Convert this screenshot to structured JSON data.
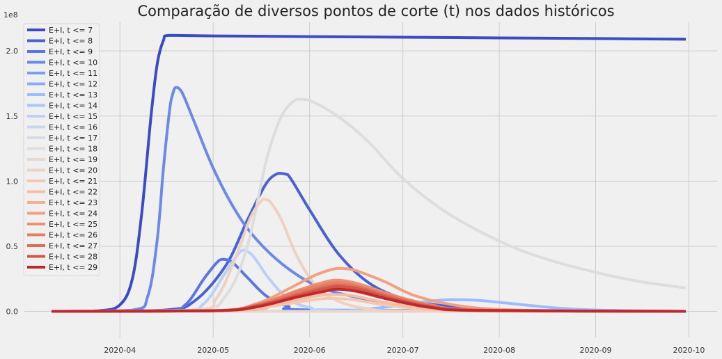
{
  "chart_data": {
    "type": "line",
    "title": "Comparação de diversos pontos de corte (t) nos dados históricos",
    "xlabel": "",
    "ylabel": "",
    "y_exponent_label": "1e8",
    "x_range": [
      "2020-03-10",
      "2020-09-30"
    ],
    "ylim": [
      -0.2,
      2.22
    ],
    "x_ticks": [
      {
        "date": "2020-04-01",
        "label": "2020-04"
      },
      {
        "date": "2020-05-01",
        "label": "2020-05"
      },
      {
        "date": "2020-06-01",
        "label": "2020-06"
      },
      {
        "date": "2020-07-01",
        "label": "2020-07"
      },
      {
        "date": "2020-08-01",
        "label": "2020-08"
      },
      {
        "date": "2020-09-01",
        "label": "2020-09"
      },
      {
        "date": "2020-10-01",
        "label": "2020-10"
      }
    ],
    "y_ticks": [
      {
        "value": 0.0,
        "label": "0.0"
      },
      {
        "value": 0.5,
        "label": "0.5"
      },
      {
        "value": 1.0,
        "label": "1.0"
      },
      {
        "value": 1.5,
        "label": "1.5"
      },
      {
        "value": 2.0,
        "label": "2.0"
      }
    ],
    "grid": true,
    "legend_position": "top-left",
    "series": [
      {
        "name": "E+I, t <= 7",
        "color": "#3b4cc0",
        "points": [
          [
            "2020-03-10",
            0
          ],
          [
            "2020-03-25",
            0.005
          ],
          [
            "2020-04-01",
            0.05
          ],
          [
            "2020-04-05",
            0.25
          ],
          [
            "2020-04-08",
            0.75
          ],
          [
            "2020-04-11",
            1.5
          ],
          [
            "2020-04-13",
            1.9
          ],
          [
            "2020-04-15",
            2.08
          ],
          [
            "2020-04-17",
            2.12
          ],
          [
            "2020-05-01",
            2.115
          ],
          [
            "2020-06-01",
            2.11
          ],
          [
            "2020-07-01",
            2.105
          ],
          [
            "2020-08-01",
            2.1
          ],
          [
            "2020-09-01",
            2.095
          ],
          [
            "2020-09-30",
            2.09
          ]
        ]
      },
      {
        "name": "E+I, t <= 8",
        "color": "#4a62d1",
        "points": [
          [
            "2020-03-10",
            0
          ],
          [
            "2020-04-15",
            0.01
          ],
          [
            "2020-04-25",
            0.08
          ],
          [
            "2020-05-05",
            0.35
          ],
          [
            "2020-05-12",
            0.7
          ],
          [
            "2020-05-18",
            0.98
          ],
          [
            "2020-05-22",
            1.06
          ],
          [
            "2020-05-25",
            1.05
          ],
          [
            "2020-06-01",
            0.78
          ],
          [
            "2020-06-10",
            0.45
          ],
          [
            "2020-06-20",
            0.22
          ],
          [
            "2020-07-01",
            0.1
          ],
          [
            "2020-07-15",
            0.04
          ],
          [
            "2020-08-01",
            0.01
          ],
          [
            "2020-09-30",
            0
          ]
        ]
      },
      {
        "name": "E+I, t <= 9",
        "color": "#5b77df",
        "points": [
          [
            "2020-03-10",
            0
          ],
          [
            "2020-04-15",
            0.005
          ],
          [
            "2020-04-22",
            0.05
          ],
          [
            "2020-04-28",
            0.25
          ],
          [
            "2020-05-02",
            0.37
          ],
          [
            "2020-05-04",
            0.4
          ],
          [
            "2020-05-07",
            0.38
          ],
          [
            "2020-05-12",
            0.26
          ],
          [
            "2020-05-18",
            0.12
          ],
          [
            "2020-05-25",
            0.04
          ],
          [
            "2020-06-05",
            0.01
          ],
          [
            "2020-09-30",
            0
          ]
        ]
      },
      {
        "name": "E+I, t <= 10",
        "color": "#6b8ae6",
        "points": [
          [
            "2020-03-10",
            0
          ],
          [
            "2020-04-05",
            0.01
          ],
          [
            "2020-04-10",
            0.12
          ],
          [
            "2020-04-13",
            0.55
          ],
          [
            "2020-04-15",
            1.1
          ],
          [
            "2020-04-17",
            1.55
          ],
          [
            "2020-04-18",
            1.67
          ],
          [
            "2020-04-19",
            1.72
          ],
          [
            "2020-04-21",
            1.68
          ],
          [
            "2020-04-25",
            1.45
          ],
          [
            "2020-05-01",
            1.1
          ],
          [
            "2020-05-08",
            0.78
          ],
          [
            "2020-05-15",
            0.55
          ],
          [
            "2020-05-25",
            0.33
          ],
          [
            "2020-06-05",
            0.18
          ],
          [
            "2020-06-20",
            0.09
          ],
          [
            "2020-07-05",
            0.04
          ],
          [
            "2020-08-01",
            0.01
          ],
          [
            "2020-09-30",
            0
          ]
        ]
      },
      {
        "name": "E+I, t <= 11",
        "color": "#7b9ff2",
        "points": [
          [
            "2020-03-10",
            0
          ],
          [
            "2020-06-01",
            0
          ],
          [
            "2020-09-30",
            0
          ]
        ]
      },
      {
        "name": "E+I, t <= 12",
        "color": "#8badf7",
        "points": [
          [
            "2020-03-10",
            0
          ],
          [
            "2020-06-01",
            0
          ],
          [
            "2020-09-30",
            0
          ]
        ]
      },
      {
        "name": "E+I, t <= 13",
        "color": "#9bbcff",
        "points": [
          [
            "2020-03-10",
            0
          ],
          [
            "2020-06-01",
            0
          ],
          [
            "2020-06-20",
            0.02
          ],
          [
            "2020-07-01",
            0.05
          ],
          [
            "2020-07-10",
            0.08
          ],
          [
            "2020-07-17",
            0.09
          ],
          [
            "2020-07-25",
            0.085
          ],
          [
            "2020-08-05",
            0.06
          ],
          [
            "2020-08-20",
            0.025
          ],
          [
            "2020-09-05",
            0.008
          ],
          [
            "2020-09-30",
            0
          ]
        ]
      },
      {
        "name": "E+I, t <= 14",
        "color": "#aac7fd",
        "points": [
          [
            "2020-03-10",
            0
          ],
          [
            "2020-06-01",
            0
          ],
          [
            "2020-09-30",
            0
          ]
        ]
      },
      {
        "name": "E+I, t <= 15",
        "color": "#b9d0f9",
        "points": [
          [
            "2020-03-10",
            0
          ],
          [
            "2020-04-20",
            0.005
          ],
          [
            "2020-04-28",
            0.06
          ],
          [
            "2020-05-05",
            0.3
          ],
          [
            "2020-05-09",
            0.44
          ],
          [
            "2020-05-11",
            0.47
          ],
          [
            "2020-05-14",
            0.42
          ],
          [
            "2020-05-19",
            0.25
          ],
          [
            "2020-05-25",
            0.1
          ],
          [
            "2020-06-01",
            0.03
          ],
          [
            "2020-06-15",
            0.005
          ],
          [
            "2020-09-30",
            0
          ]
        ]
      },
      {
        "name": "E+I, t <= 16",
        "color": "#c7d7f0",
        "points": [
          [
            "2020-03-10",
            0
          ],
          [
            "2020-06-01",
            0
          ],
          [
            "2020-09-30",
            0
          ]
        ]
      },
      {
        "name": "E+I, t <= 17",
        "color": "#d3dbe7",
        "points": [
          [
            "2020-03-10",
            0
          ],
          [
            "2020-06-01",
            0
          ],
          [
            "2020-09-30",
            0
          ]
        ]
      },
      {
        "name": "E+I, t <= 18",
        "color": "#dddddd",
        "points": [
          [
            "2020-03-10",
            0
          ],
          [
            "2020-04-25",
            0.01
          ],
          [
            "2020-05-05",
            0.12
          ],
          [
            "2020-05-12",
            0.5
          ],
          [
            "2020-05-18",
            1.15
          ],
          [
            "2020-05-23",
            1.5
          ],
          [
            "2020-05-28",
            1.63
          ],
          [
            "2020-06-01",
            1.62
          ],
          [
            "2020-06-10",
            1.5
          ],
          [
            "2020-06-20",
            1.3
          ],
          [
            "2020-07-01",
            1.02
          ],
          [
            "2020-07-15",
            0.76
          ],
          [
            "2020-08-01",
            0.54
          ],
          [
            "2020-08-15",
            0.41
          ],
          [
            "2020-09-01",
            0.3
          ],
          [
            "2020-09-15",
            0.23
          ],
          [
            "2020-09-30",
            0.18
          ]
        ]
      },
      {
        "name": "E+I, t <= 19",
        "color": "#e5d8d1",
        "points": [
          [
            "2020-03-10",
            0
          ],
          [
            "2020-06-01",
            0
          ],
          [
            "2020-09-30",
            0
          ]
        ]
      },
      {
        "name": "E+I, t <= 20",
        "color": "#edd1c2",
        "points": [
          [
            "2020-03-10",
            0
          ],
          [
            "2020-04-25",
            0.01
          ],
          [
            "2020-05-02",
            0.1
          ],
          [
            "2020-05-08",
            0.4
          ],
          [
            "2020-05-13",
            0.72
          ],
          [
            "2020-05-17",
            0.86
          ],
          [
            "2020-05-19",
            0.85
          ],
          [
            "2020-05-23",
            0.7
          ],
          [
            "2020-05-28",
            0.42
          ],
          [
            "2020-06-03",
            0.2
          ],
          [
            "2020-06-10",
            0.08
          ],
          [
            "2020-06-20",
            0.02
          ],
          [
            "2020-07-05",
            0.003
          ],
          [
            "2020-09-30",
            0
          ]
        ]
      },
      {
        "name": "E+I, t <= 21",
        "color": "#f2c8b4",
        "points": [
          [
            "2020-03-10",
            0
          ],
          [
            "2020-05-10",
            0.01
          ],
          [
            "2020-05-20",
            0.04
          ],
          [
            "2020-06-01",
            0.085
          ],
          [
            "2020-06-07",
            0.1
          ],
          [
            "2020-06-15",
            0.09
          ],
          [
            "2020-06-25",
            0.05
          ],
          [
            "2020-07-10",
            0.015
          ],
          [
            "2020-08-01",
            0.002
          ],
          [
            "2020-09-30",
            0
          ]
        ]
      },
      {
        "name": "E+I, t <= 22",
        "color": "#f5bea3",
        "points": [
          [
            "2020-03-10",
            0
          ],
          [
            "2020-05-10",
            0.01
          ],
          [
            "2020-05-20",
            0.05
          ],
          [
            "2020-06-01",
            0.11
          ],
          [
            "2020-06-08",
            0.13
          ],
          [
            "2020-06-15",
            0.12
          ],
          [
            "2020-06-25",
            0.07
          ],
          [
            "2020-07-10",
            0.02
          ],
          [
            "2020-08-01",
            0.003
          ],
          [
            "2020-09-30",
            0
          ]
        ]
      },
      {
        "name": "E+I, t <= 23",
        "color": "#f4b093",
        "points": [
          [
            "2020-03-10",
            0
          ],
          [
            "2020-05-05",
            0.01
          ],
          [
            "2020-05-20",
            0.07
          ],
          [
            "2020-06-01",
            0.15
          ],
          [
            "2020-06-08",
            0.18
          ],
          [
            "2020-06-15",
            0.16
          ],
          [
            "2020-06-25",
            0.1
          ],
          [
            "2020-07-10",
            0.03
          ],
          [
            "2020-08-01",
            0.004
          ],
          [
            "2020-09-30",
            0
          ]
        ]
      },
      {
        "name": "E+I, t <= 24",
        "color": "#f1a083",
        "points": [
          [
            "2020-03-10",
            0
          ],
          [
            "2020-05-01",
            0.005
          ],
          [
            "2020-05-15",
            0.06
          ],
          [
            "2020-05-25",
            0.17
          ],
          [
            "2020-06-03",
            0.28
          ],
          [
            "2020-06-10",
            0.33
          ],
          [
            "2020-06-15",
            0.32
          ],
          [
            "2020-06-25",
            0.23
          ],
          [
            "2020-07-05",
            0.12
          ],
          [
            "2020-07-20",
            0.04
          ],
          [
            "2020-08-10",
            0.008
          ],
          [
            "2020-09-30",
            0
          ]
        ]
      },
      {
        "name": "E+I, t <= 25",
        "color": "#ec8f73",
        "points": [
          [
            "2020-03-10",
            0
          ],
          [
            "2020-05-01",
            0.005
          ],
          [
            "2020-05-15",
            0.05
          ],
          [
            "2020-05-28",
            0.16
          ],
          [
            "2020-06-05",
            0.22
          ],
          [
            "2020-06-10",
            0.24
          ],
          [
            "2020-06-17",
            0.21
          ],
          [
            "2020-06-27",
            0.13
          ],
          [
            "2020-07-10",
            0.05
          ],
          [
            "2020-07-25",
            0.012
          ],
          [
            "2020-09-30",
            0
          ]
        ]
      },
      {
        "name": "E+I, t <= 26",
        "color": "#e47e64",
        "points": [
          [
            "2020-03-10",
            0
          ],
          [
            "2020-05-01",
            0.005
          ],
          [
            "2020-05-15",
            0.05
          ],
          [
            "2020-05-28",
            0.15
          ],
          [
            "2020-06-05",
            0.2
          ],
          [
            "2020-06-10",
            0.22
          ],
          [
            "2020-06-17",
            0.19
          ],
          [
            "2020-06-27",
            0.12
          ],
          [
            "2020-07-10",
            0.045
          ],
          [
            "2020-07-25",
            0.01
          ],
          [
            "2020-09-30",
            0
          ]
        ]
      },
      {
        "name": "E+I, t <= 27",
        "color": "#dc6b56",
        "points": [
          [
            "2020-03-10",
            0
          ],
          [
            "2020-05-01",
            0.005
          ],
          [
            "2020-05-15",
            0.045
          ],
          [
            "2020-05-28",
            0.13
          ],
          [
            "2020-06-05",
            0.18
          ],
          [
            "2020-06-10",
            0.2
          ],
          [
            "2020-06-17",
            0.18
          ],
          [
            "2020-06-27",
            0.11
          ],
          [
            "2020-07-10",
            0.04
          ],
          [
            "2020-07-25",
            0.01
          ],
          [
            "2020-09-30",
            0
          ]
        ]
      },
      {
        "name": "E+I, t <= 28",
        "color": "#d0574a",
        "points": [
          [
            "2020-03-10",
            0
          ],
          [
            "2020-05-01",
            0.005
          ],
          [
            "2020-05-15",
            0.04
          ],
          [
            "2020-05-28",
            0.12
          ],
          [
            "2020-06-05",
            0.17
          ],
          [
            "2020-06-10",
            0.19
          ],
          [
            "2020-06-17",
            0.17
          ],
          [
            "2020-06-27",
            0.1
          ],
          [
            "2020-07-10",
            0.035
          ],
          [
            "2020-07-25",
            0.008
          ],
          [
            "2020-09-30",
            0
          ]
        ]
      },
      {
        "name": "E+I, t <= 29",
        "color": "#c0282f",
        "points": [
          [
            "2020-03-10",
            0
          ],
          [
            "2020-05-01",
            0.005
          ],
          [
            "2020-05-15",
            0.035
          ],
          [
            "2020-05-28",
            0.11
          ],
          [
            "2020-06-05",
            0.15
          ],
          [
            "2020-06-10",
            0.17
          ],
          [
            "2020-06-17",
            0.15
          ],
          [
            "2020-06-27",
            0.09
          ],
          [
            "2020-07-10",
            0.03
          ],
          [
            "2020-07-25",
            0.007
          ],
          [
            "2020-09-30",
            0
          ]
        ]
      }
    ]
  }
}
